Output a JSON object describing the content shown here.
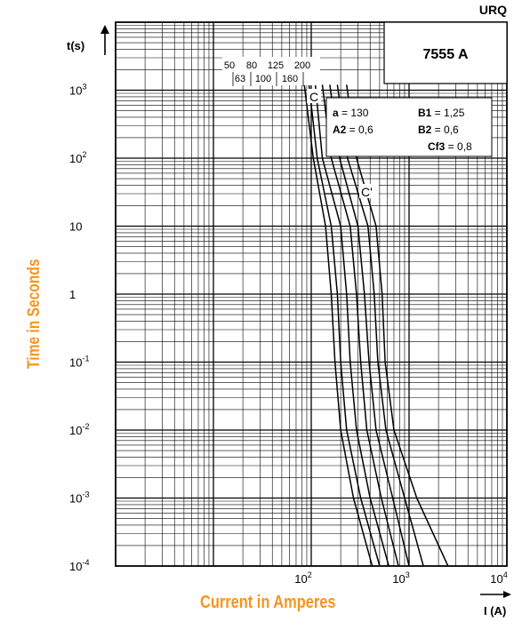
{
  "brand": "URQ",
  "model": "7555 A",
  "x_axis_title": "Current in Amperes",
  "y_axis_title": "Time in Seconds",
  "y_axis_unit": "t(s)",
  "x_axis_unit": "I (A)",
  "parameters": [
    {
      "name": "a",
      "value": "130"
    },
    {
      "name": "B1",
      "value": "1,25"
    },
    {
      "name": "A2",
      "value": "0,6"
    },
    {
      "name": "B2",
      "value": "0,6"
    },
    {
      "name": "Cf3",
      "value": "0,8"
    }
  ],
  "chart_data": {
    "type": "line",
    "x_scale": "log",
    "y_scale": "log",
    "xlim": [
      1,
      10000
    ],
    "ylim": [
      0.0001,
      10000
    ],
    "x_ticks": [
      {
        "value": 100,
        "base": "10",
        "exp": "2"
      },
      {
        "value": 1000,
        "base": "10",
        "exp": "3"
      },
      {
        "value": 10000,
        "base": "10",
        "exp": "4"
      }
    ],
    "y_ticks": [
      {
        "value": 1000,
        "base": "10",
        "exp": "3"
      },
      {
        "value": 100,
        "base": "10",
        "exp": "2"
      },
      {
        "value": 10,
        "base": "10",
        "exp": ""
      },
      {
        "value": 1,
        "base": "1",
        "exp": ""
      },
      {
        "value": 0.1,
        "base": "10",
        "exp": "-1"
      },
      {
        "value": 0.01,
        "base": "10",
        "exp": "-2"
      },
      {
        "value": 0.001,
        "base": "10",
        "exp": "-3"
      },
      {
        "value": 0.0001,
        "base": "10",
        "exp": "-4"
      }
    ],
    "grid": true,
    "rating_labels_top": [
      "50",
      "80",
      "125",
      "200"
    ],
    "rating_labels_bottom": [
      "63",
      "100",
      "160"
    ],
    "annotations": [
      "C",
      "C'"
    ],
    "series": [
      {
        "name": "50",
        "points": [
          [
            85,
            1200
          ],
          [
            105,
            100
          ],
          [
            140,
            10
          ],
          [
            160,
            1
          ],
          [
            175,
            0.1
          ],
          [
            200,
            0.01
          ],
          [
            270,
            0.001
          ],
          [
            420,
            0.0001
          ]
        ]
      },
      {
        "name": "63",
        "points": [
          [
            95,
            1200
          ],
          [
            115,
            100
          ],
          [
            160,
            10
          ],
          [
            185,
            1
          ],
          [
            200,
            0.1
          ],
          [
            230,
            0.01
          ],
          [
            320,
            0.001
          ],
          [
            500,
            0.0001
          ]
        ]
      },
      {
        "name": "80",
        "points": [
          [
            110,
            1200
          ],
          [
            130,
            100
          ],
          [
            200,
            10
          ],
          [
            230,
            1
          ],
          [
            250,
            0.1
          ],
          [
            290,
            0.01
          ],
          [
            400,
            0.001
          ],
          [
            620,
            0.0001
          ]
        ]
      },
      {
        "name": "100",
        "points": [
          [
            130,
            1200
          ],
          [
            160,
            100
          ],
          [
            250,
            10
          ],
          [
            290,
            1
          ],
          [
            320,
            0.1
          ],
          [
            370,
            0.01
          ],
          [
            520,
            0.001
          ],
          [
            780,
            0.0001
          ]
        ]
      },
      {
        "name": "125",
        "points": [
          [
            155,
            1200
          ],
          [
            195,
            100
          ],
          [
            300,
            10
          ],
          [
            350,
            1
          ],
          [
            390,
            0.1
          ],
          [
            460,
            0.01
          ],
          [
            680,
            0.001
          ],
          [
            1000,
            0.0001
          ]
        ]
      },
      {
        "name": "160",
        "points": [
          [
            185,
            1200
          ],
          [
            235,
            100
          ],
          [
            380,
            10
          ],
          [
            440,
            1
          ],
          [
            480,
            0.1
          ],
          [
            580,
            0.01
          ],
          [
            900,
            0.001
          ],
          [
            1400,
            0.0001
          ]
        ]
      },
      {
        "name": "200",
        "points": [
          [
            230,
            1200
          ],
          [
            290,
            100
          ],
          [
            460,
            10
          ],
          [
            530,
            1
          ],
          [
            570,
            0.1
          ],
          [
            700,
            0.01
          ],
          [
            1200,
            0.001
          ],
          [
            2500,
            0.0001
          ]
        ]
      }
    ]
  }
}
